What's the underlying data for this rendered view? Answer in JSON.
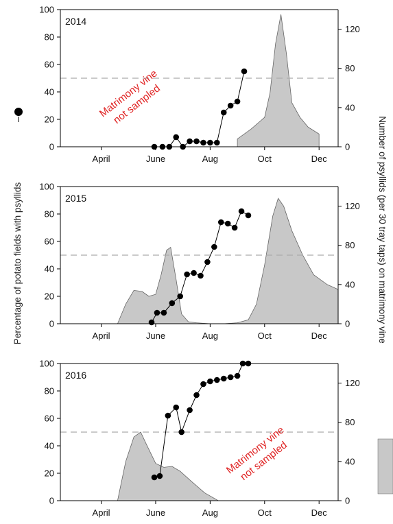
{
  "y_left_label": "Percentage of potato fields with psyllids",
  "y_right_label": "Number of psyllids (per 30 tray taps) on matrimony vine",
  "x_tick_labels": [
    "April",
    "June",
    "Aug",
    "Oct",
    "Dec"
  ],
  "colors": {
    "area_fill": "#c8c8c8",
    "area_stroke": "#666666",
    "annotation": "#e02424",
    "points": "#000000",
    "threshold": "#aaaaaa"
  },
  "chart_data": [
    {
      "type": "line",
      "panel": "2014",
      "year_label": "2014",
      "annotation": "Matrimony vine not sampled",
      "x_axis_unit": "month",
      "xlim": [
        2.5,
        12.7
      ],
      "ylim_left": [
        0,
        100
      ],
      "ylim_right": [
        0,
        140
      ],
      "left_ticks": [
        0,
        20,
        40,
        60,
        80,
        100
      ],
      "right_ticks": [
        0,
        40,
        80,
        120
      ],
      "threshold_left": 50,
      "series": [
        {
          "axis": "left",
          "kind": "points",
          "x": [
            5.95,
            6.25,
            6.5,
            6.75,
            7.0,
            7.25,
            7.5,
            7.75,
            8.0,
            8.25,
            8.5,
            8.75,
            9.0,
            9.25
          ],
          "y": [
            0,
            0,
            0,
            7,
            0,
            4,
            4,
            3,
            3,
            3,
            25,
            30,
            33,
            55
          ]
        },
        {
          "axis": "right",
          "kind": "area",
          "x": [
            9.0,
            9.5,
            10.0,
            10.2,
            10.4,
            10.6,
            10.8,
            11.0,
            11.3,
            11.6,
            12.0
          ],
          "y": [
            8,
            18,
            30,
            55,
            105,
            135,
            95,
            45,
            30,
            20,
            13
          ]
        }
      ]
    },
    {
      "type": "line",
      "panel": "2015",
      "year_label": "2015",
      "annotation": "",
      "x_axis_unit": "month",
      "xlim": [
        2.5,
        12.7
      ],
      "ylim_left": [
        0,
        100
      ],
      "ylim_right": [
        0,
        140
      ],
      "left_ticks": [
        0,
        20,
        40,
        60,
        80,
        100
      ],
      "right_ticks": [
        0,
        40,
        80,
        120
      ],
      "threshold_left": 50,
      "series": [
        {
          "axis": "left",
          "kind": "points",
          "x": [
            5.85,
            6.05,
            6.3,
            6.6,
            6.9,
            7.15,
            7.4,
            7.65,
            7.9,
            8.15,
            8.4,
            8.65,
            8.9,
            9.15,
            9.4
          ],
          "y": [
            1,
            8,
            8,
            15,
            20,
            36,
            37,
            35,
            45,
            56,
            74,
            73,
            70,
            82,
            79
          ]
        },
        {
          "axis": "right",
          "kind": "area",
          "x": [
            4.6,
            4.9,
            5.2,
            5.5,
            5.75,
            6.0,
            6.2,
            6.4,
            6.55,
            6.75,
            6.95,
            7.2,
            7.5,
            8.0,
            8.5,
            9.0,
            9.4,
            9.7,
            10.0,
            10.3,
            10.5,
            10.7,
            11.0,
            11.4,
            11.8,
            12.3,
            12.7
          ],
          "y": [
            0,
            20,
            34,
            33,
            28,
            30,
            50,
            75,
            78,
            45,
            10,
            2,
            1,
            0,
            0,
            1,
            4,
            20,
            60,
            110,
            128,
            120,
            95,
            70,
            50,
            40,
            35
          ]
        }
      ]
    },
    {
      "type": "line",
      "panel": "2016",
      "year_label": "2016",
      "annotation": "Matrimony vine not sampled",
      "x_axis_unit": "month",
      "xlim": [
        2.5,
        12.7
      ],
      "ylim_left": [
        0,
        100
      ],
      "ylim_right": [
        0,
        140
      ],
      "left_ticks": [
        0,
        20,
        40,
        60,
        80,
        100
      ],
      "right_ticks": [
        0,
        40,
        80,
        120
      ],
      "threshold_left": 50,
      "series": [
        {
          "axis": "left",
          "kind": "points",
          "x": [
            5.95,
            6.15,
            6.45,
            6.75,
            6.95,
            7.25,
            7.5,
            7.75,
            8.0,
            8.25,
            8.5,
            8.75,
            9.0,
            9.2,
            9.4
          ],
          "y": [
            17,
            18,
            62,
            68,
            50,
            66,
            77,
            85,
            87,
            88,
            89,
            90,
            91,
            100,
            100
          ]
        },
        {
          "axis": "right",
          "kind": "area",
          "x": [
            4.6,
            4.9,
            5.2,
            5.45,
            5.65,
            6.0,
            6.3,
            6.6,
            6.9,
            7.3,
            7.8,
            8.3
          ],
          "y": [
            0,
            40,
            65,
            70,
            58,
            38,
            34,
            35,
            30,
            20,
            8,
            0
          ]
        }
      ]
    }
  ]
}
